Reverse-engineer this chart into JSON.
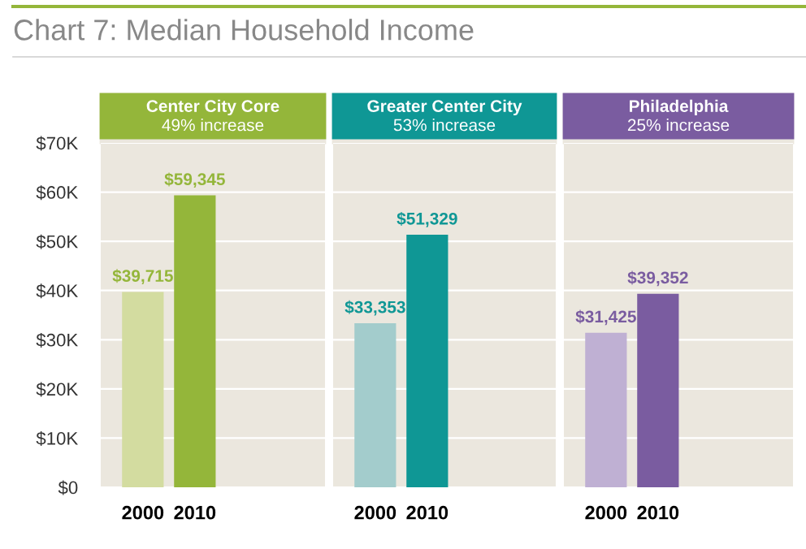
{
  "chart_data": [
    {
      "type": "bar",
      "title": "Center City Core",
      "subtitle": "49% increase",
      "annotations": [
        "Chart 7: Median Household Income"
      ],
      "categories": [
        "2000",
        "2010"
      ],
      "values": [
        39715,
        59345
      ],
      "colors": [
        "#d3dca0",
        "#94b63a"
      ],
      "value_labels": [
        "$39,715",
        "$59,345"
      ],
      "ylim": [
        0,
        70000
      ],
      "yticks": [
        {
          "value": 0,
          "label": "$0"
        },
        {
          "value": 10000,
          "label": "$10K"
        },
        {
          "value": 20000,
          "label": "$20K"
        },
        {
          "value": 30000,
          "label": "$30K"
        },
        {
          "value": 40000,
          "label": "$40K"
        },
        {
          "value": 50000,
          "label": "$50K"
        },
        {
          "value": 60000,
          "label": "$60K"
        },
        {
          "value": 70000,
          "label": "$70K"
        }
      ],
      "grid": "y"
    },
    {
      "type": "bar",
      "title": "Greater Center City",
      "subtitle": "53% increase",
      "categories": [
        "2000",
        "2010"
      ],
      "values": [
        33353,
        51329
      ],
      "colors": [
        "#a3cccc",
        "#0f9795"
      ],
      "value_labels": [
        "$33,353",
        "$51,329"
      ],
      "ylim": [
        0,
        70000
      ],
      "grid": "y",
      "tick_labels": "x"
    },
    {
      "type": "bar",
      "title": "Philadelphia",
      "subtitle": "25% increase",
      "categories": [
        "2000",
        "2010"
      ],
      "values": [
        31425,
        39352
      ],
      "colors": [
        "#bfb0d3",
        "#7a5ca0"
      ],
      "value_labels": [
        "$31,425",
        "$39,352"
      ],
      "ylim": [
        0,
        70000
      ],
      "grid": "y",
      "tick_labels": "x"
    }
  ]
}
